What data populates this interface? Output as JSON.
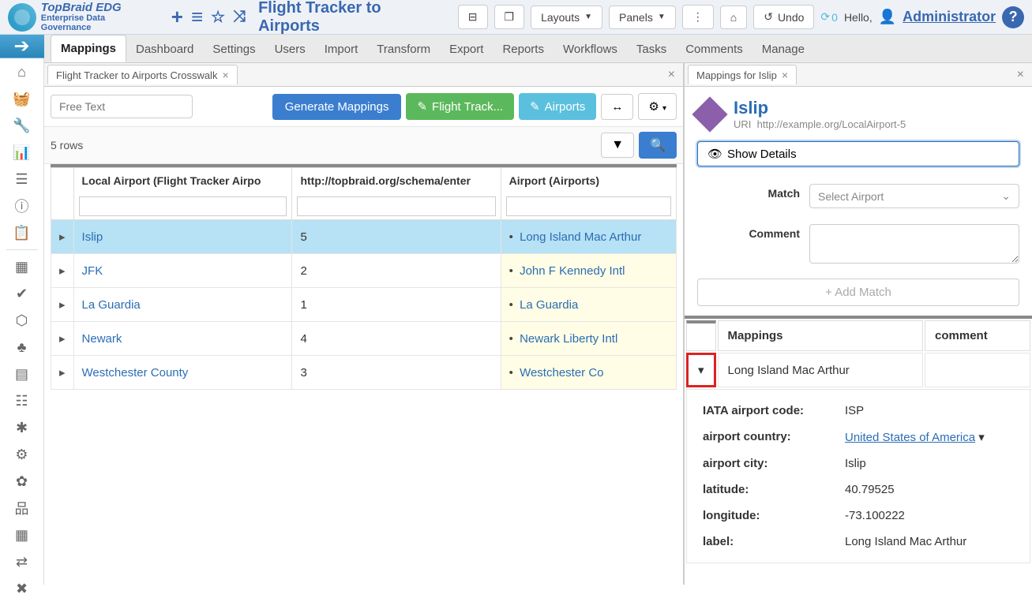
{
  "header": {
    "logo_main": "TopBraid EDG",
    "logo_sub": "Enterprise Data Governance",
    "title": "Flight Tracker to Airports",
    "layouts_btn": "Layouts",
    "panels_btn": "Panels",
    "undo_btn": "Undo",
    "sync_count": "0",
    "hello": "Hello,",
    "user": "Administrator"
  },
  "menu": {
    "items": [
      "Mappings",
      "Dashboard",
      "Settings",
      "Users",
      "Import",
      "Transform",
      "Export",
      "Reports",
      "Workflows",
      "Tasks",
      "Comments",
      "Manage"
    ]
  },
  "left_panel": {
    "tab_title": "Flight Tracker to Airports Crosswalk",
    "free_text_placeholder": "Free Text",
    "generate_btn": "Generate Mappings",
    "flight_track_btn": "Flight Track...",
    "airports_btn": "Airports",
    "row_count": "5 rows",
    "columns": [
      "Local Airport (Flight Tracker Airpo",
      "http://topbraid.org/schema/enter",
      "Airport (Airports)"
    ],
    "rows": [
      {
        "name": "Islip",
        "id": "5",
        "airport": "Long Island Mac Arthur",
        "selected": true
      },
      {
        "name": "JFK",
        "id": "2",
        "airport": "John F Kennedy Intl",
        "selected": false
      },
      {
        "name": "La Guardia",
        "id": "1",
        "airport": "La Guardia",
        "selected": false
      },
      {
        "name": "Newark",
        "id": "4",
        "airport": "Newark Liberty Intl",
        "selected": false
      },
      {
        "name": "Westchester County",
        "id": "3",
        "airport": "Westchester Co",
        "selected": false
      }
    ]
  },
  "right_panel": {
    "tab_title": "Mappings for Islip",
    "title": "Islip",
    "uri_label": "URI",
    "uri": "http://example.org/LocalAirport-5",
    "show_details": "Show Details",
    "match_label": "Match",
    "match_placeholder": "Select Airport",
    "comment_label": "Comment",
    "add_match": "Add Match",
    "table_headers": [
      "Mappings",
      "comment"
    ],
    "mapping_name": "Long Island Mac Arthur",
    "details": [
      {
        "k": "IATA airport code:",
        "v": "ISP",
        "link": false
      },
      {
        "k": "airport country:",
        "v": "United States of America",
        "link": true
      },
      {
        "k": "airport city:",
        "v": "Islip",
        "link": false
      },
      {
        "k": "latitude:",
        "v": "40.79525",
        "link": false
      },
      {
        "k": "longitude:",
        "v": "-73.100222",
        "link": false
      },
      {
        "k": "label:",
        "v": "Long Island Mac Arthur",
        "link": false
      }
    ]
  }
}
